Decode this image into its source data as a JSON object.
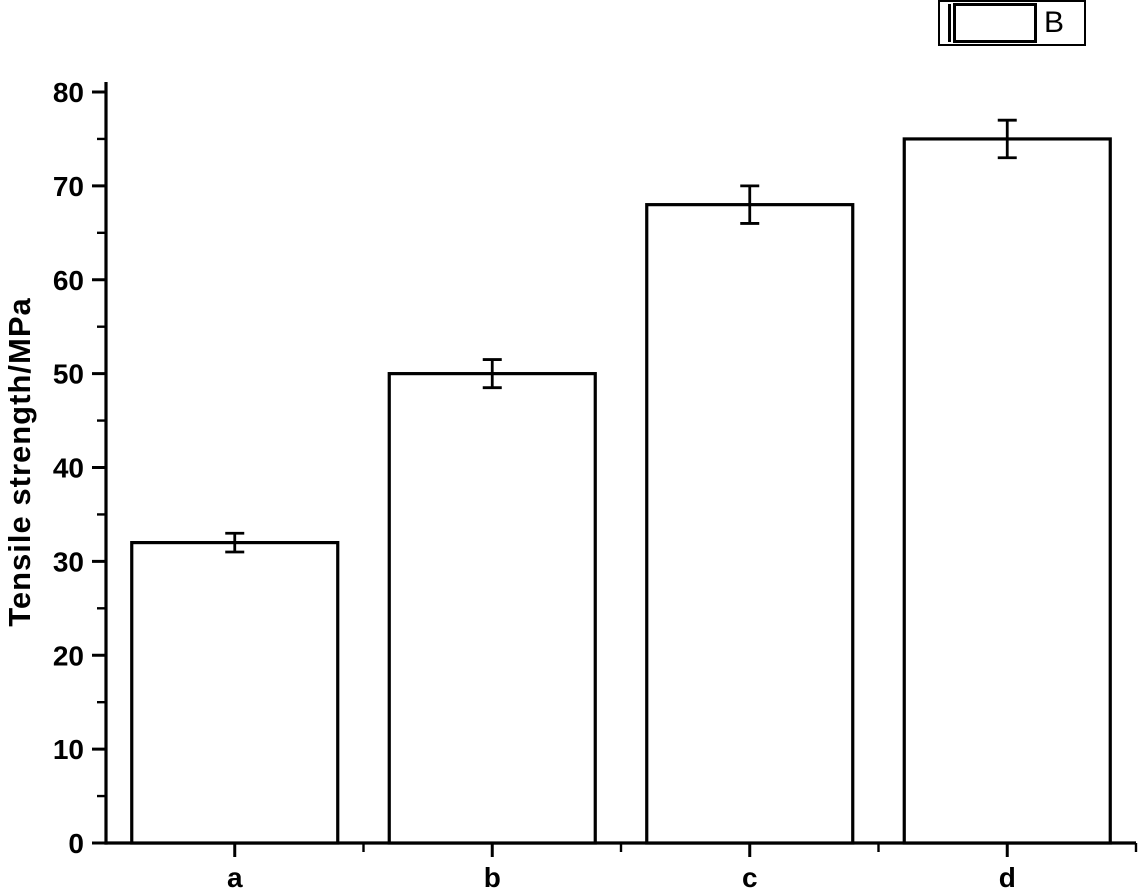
{
  "chart_data": {
    "type": "bar",
    "title": "",
    "xlabel": "",
    "ylabel": "Tensile strength/MPa",
    "categories": [
      "a",
      "b",
      "c",
      "d"
    ],
    "series": [
      {
        "name": "B",
        "values": [
          32,
          50,
          68,
          75
        ],
        "errors": [
          1,
          1.5,
          2,
          2
        ]
      }
    ],
    "ylim": [
      0,
      80
    ],
    "y_major_ticks": [
      0,
      10,
      20,
      30,
      40,
      50,
      60,
      70,
      80
    ],
    "y_minor_step": 5,
    "grid": false,
    "legend_position": "top-right",
    "bar_fill": "#ffffff",
    "bar_border": "#000000"
  },
  "legend": {
    "entries": [
      {
        "label": "B",
        "swatch_fill": "#ffffff",
        "swatch_border": "#000000"
      }
    ]
  },
  "colors": {
    "axis": "#000000",
    "text": "#000000",
    "background": "#ffffff"
  }
}
